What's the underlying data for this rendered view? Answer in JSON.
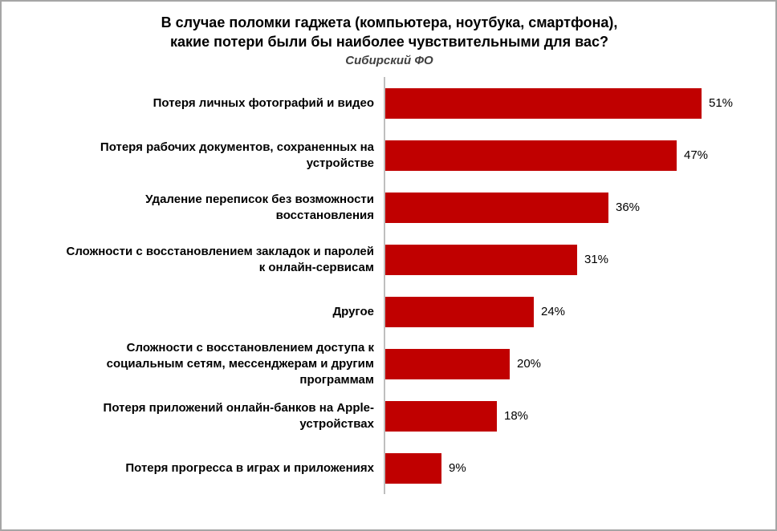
{
  "chart_data": {
    "type": "bar",
    "orientation": "horizontal",
    "title": "В случае поломки гаджета (компьютера, ноутбука, смартфона),\nкакие потери были бы наиболее чувствительными для вас?",
    "subtitle": "Сибирский ФО",
    "categories": [
      "Потеря личных фотографий и видео",
      "Потеря рабочих документов, сохраненных на\nустройстве",
      "Удаление переписок без возможности\nвосстановления",
      "Сложности с восстановлением закладок и паролей\nк онлайн-сервисам",
      "Другое",
      "Сложности с восстановлением доступа к\nсоциальным сетям, мессенджерам и другим\nпрограммам",
      "Потеря приложений онлайн-банков на Apple-\nустройствах",
      "Потеря прогресса в играх и приложениях"
    ],
    "values": [
      51,
      47,
      36,
      31,
      24,
      20,
      18,
      9
    ],
    "value_labels": [
      "51%",
      "47%",
      "36%",
      "31%",
      "24%",
      "20%",
      "18%",
      "9%"
    ],
    "value_suffix": "%",
    "xlim": [
      0,
      55
    ],
    "grid": false,
    "legend": false
  },
  "colors": {
    "bar": "#C00000",
    "axis": "#BFBFBF",
    "border": "#A6A6A6",
    "text": "#000000"
  }
}
